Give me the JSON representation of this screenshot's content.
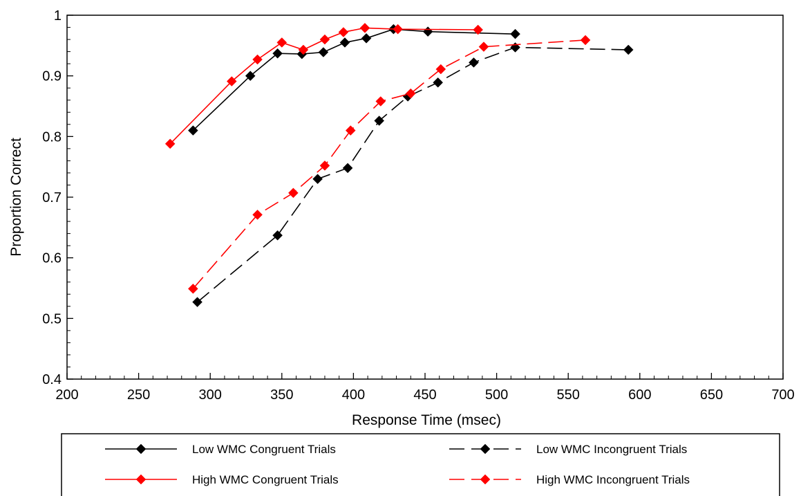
{
  "chart_data": {
    "type": "line",
    "title": "",
    "xlabel": "Response Time (msec)",
    "ylabel": "Proportion Correct",
    "xlim": [
      200,
      700
    ],
    "ylim": [
      0.4,
      1.0
    ],
    "x_ticks": [
      "200",
      "250",
      "300",
      "350",
      "400",
      "450",
      "500",
      "550",
      "600",
      "650",
      "700"
    ],
    "y_ticks": [
      "0.4",
      "0.5",
      "0.6",
      "0.7",
      "0.8",
      "0.9",
      "1"
    ],
    "grid": false,
    "legend_position": "bottom",
    "series": [
      {
        "name": "Low WMC Congruent Trials",
        "color": "#000000",
        "line_style": "solid",
        "marker": "diamond",
        "x": [
          288,
          328,
          347,
          364,
          379,
          394,
          409,
          428,
          452,
          513
        ],
        "y": [
          0.81,
          0.9,
          0.937,
          0.936,
          0.939,
          0.955,
          0.962,
          0.977,
          0.973,
          0.969
        ]
      },
      {
        "name": "High WMC Congruent Trials",
        "color": "#ff0000",
        "line_style": "solid",
        "marker": "diamond",
        "x": [
          272,
          315,
          333,
          350,
          365,
          380,
          393,
          408,
          431,
          487
        ],
        "y": [
          0.788,
          0.891,
          0.927,
          0.955,
          0.943,
          0.96,
          0.972,
          0.979,
          0.977,
          0.976
        ]
      },
      {
        "name": "Low WMC Incongruent Trials",
        "color": "#000000",
        "line_style": "dashed",
        "marker": "diamond",
        "x": [
          291,
          347,
          375,
          396,
          418,
          438,
          459,
          484,
          513,
          592
        ],
        "y": [
          0.527,
          0.637,
          0.73,
          0.748,
          0.826,
          0.866,
          0.889,
          0.922,
          0.947,
          0.943
        ]
      },
      {
        "name": "High WMC Incongruent Trials",
        "color": "#ff0000",
        "line_style": "dashed",
        "marker": "diamond",
        "x": [
          288,
          333,
          358,
          380,
          398,
          419,
          440,
          461,
          491,
          562
        ],
        "y": [
          0.549,
          0.671,
          0.707,
          0.752,
          0.81,
          0.858,
          0.871,
          0.911,
          0.948,
          0.959
        ]
      }
    ]
  }
}
